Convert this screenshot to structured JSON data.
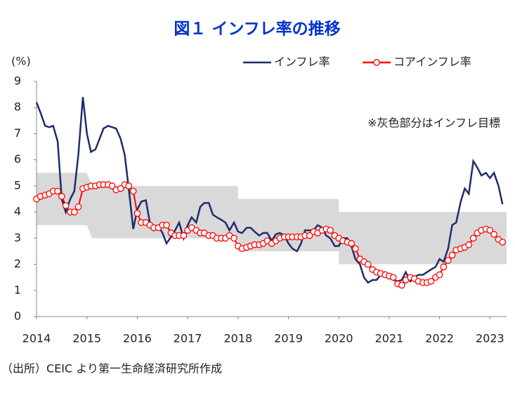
{
  "chart_data": {
    "type": "line",
    "title": "図１ インフレ率の推移",
    "ylabel": "(%)",
    "annotation": "※灰色部分はインフレ目標",
    "source": "（出所）CEIC より第一生命経済研究所作成",
    "xlim": [
      2014,
      2023.33
    ],
    "xticks": [
      2014,
      2015,
      2016,
      2017,
      2018,
      2019,
      2020,
      2021,
      2022,
      2023
    ],
    "ylim": [
      0,
      9
    ],
    "yticks": [
      0,
      1,
      2,
      3,
      4,
      5,
      6,
      7,
      8,
      9
    ],
    "legend": "top-right",
    "band": {
      "color": "#d9d9d9",
      "x": [
        2014,
        2015,
        2015.1,
        2018,
        2018,
        2020,
        2020,
        2023.33
      ],
      "low": [
        3.5,
        3.5,
        3,
        3,
        2.5,
        2.5,
        2,
        2
      ],
      "high": [
        5.5,
        5.5,
        5,
        5,
        4.5,
        4.5,
        4,
        4
      ]
    },
    "x": [
      2014.0,
      2014.08,
      2014.17,
      2014.25,
      2014.33,
      2014.42,
      2014.5,
      2014.58,
      2014.67,
      2014.75,
      2014.83,
      2014.92,
      2015.0,
      2015.08,
      2015.17,
      2015.25,
      2015.33,
      2015.42,
      2015.5,
      2015.58,
      2015.67,
      2015.75,
      2015.83,
      2015.92,
      2016.0,
      2016.08,
      2016.17,
      2016.25,
      2016.33,
      2016.42,
      2016.5,
      2016.58,
      2016.67,
      2016.75,
      2016.83,
      2016.92,
      2017.0,
      2017.08,
      2017.17,
      2017.25,
      2017.33,
      2017.42,
      2017.5,
      2017.58,
      2017.67,
      2017.75,
      2017.83,
      2017.92,
      2018.0,
      2018.08,
      2018.17,
      2018.25,
      2018.33,
      2018.42,
      2018.5,
      2018.58,
      2018.67,
      2018.75,
      2018.83,
      2018.92,
      2019.0,
      2019.08,
      2019.17,
      2019.25,
      2019.33,
      2019.42,
      2019.5,
      2019.58,
      2019.67,
      2019.75,
      2019.83,
      2019.92,
      2020.0,
      2020.08,
      2020.17,
      2020.25,
      2020.33,
      2020.42,
      2020.5,
      2020.58,
      2020.67,
      2020.75,
      2020.83,
      2020.92,
      2021.0,
      2021.08,
      2021.17,
      2021.25,
      2021.33,
      2021.42,
      2021.5,
      2021.58,
      2021.67,
      2021.75,
      2021.83,
      2021.92,
      2022.0,
      2022.08,
      2022.17,
      2022.25,
      2022.33,
      2022.42,
      2022.5,
      2022.58,
      2022.67,
      2022.75,
      2022.83,
      2022.92,
      2023.0,
      2023.08,
      2023.17,
      2023.25
    ],
    "series": [
      {
        "name": "インフレ率",
        "color": "#1f2d6b",
        "marker": false,
        "values": [
          8.2,
          7.8,
          7.3,
          7.25,
          7.3,
          6.7,
          4.5,
          4.0,
          4.5,
          4.8,
          6.2,
          8.4,
          7.0,
          6.3,
          6.4,
          6.8,
          7.2,
          7.3,
          7.25,
          7.2,
          6.8,
          6.2,
          4.9,
          3.35,
          4.1,
          4.4,
          4.45,
          3.6,
          3.3,
          3.45,
          3.2,
          2.8,
          3.05,
          3.3,
          3.6,
          3.0,
          3.5,
          3.8,
          3.6,
          4.2,
          4.35,
          4.35,
          3.9,
          3.8,
          3.7,
          3.6,
          3.3,
          3.6,
          3.25,
          3.2,
          3.4,
          3.4,
          3.25,
          3.1,
          3.2,
          3.2,
          2.9,
          3.15,
          3.2,
          3.1,
          2.8,
          2.6,
          2.5,
          2.8,
          3.3,
          3.3,
          3.3,
          3.5,
          3.4,
          3.1,
          3.0,
          2.7,
          2.7,
          3.0,
          3.0,
          2.7,
          2.2,
          2.0,
          1.5,
          1.3,
          1.4,
          1.4,
          1.6,
          1.7,
          1.55,
          1.4,
          1.35,
          1.4,
          1.7,
          1.35,
          1.5,
          1.6,
          1.6,
          1.7,
          1.8,
          1.9,
          2.2,
          2.1,
          2.6,
          3.5,
          3.6,
          4.4,
          4.9,
          4.7,
          5.95,
          5.7,
          5.4,
          5.5,
          5.3,
          5.5,
          5.0,
          4.3
        ]
      },
      {
        "name": "コアインフレ率",
        "color": "#ff0000",
        "marker": true,
        "values": [
          4.5,
          4.6,
          4.65,
          4.7,
          4.8,
          4.8,
          4.6,
          4.25,
          4.0,
          4.0,
          4.2,
          4.9,
          4.95,
          5.0,
          5.0,
          5.05,
          5.05,
          5.05,
          5.0,
          4.85,
          4.9,
          5.05,
          5.0,
          4.8,
          3.95,
          3.6,
          3.6,
          3.5,
          3.4,
          3.4,
          3.5,
          3.5,
          3.2,
          3.1,
          3.1,
          3.1,
          3.3,
          3.4,
          3.3,
          3.2,
          3.2,
          3.1,
          3.1,
          3.0,
          3.0,
          3.0,
          3.1,
          3.0,
          2.7,
          2.6,
          2.65,
          2.7,
          2.75,
          2.75,
          2.8,
          2.9,
          2.8,
          2.9,
          3.0,
          3.05,
          3.05,
          3.05,
          3.05,
          3.05,
          3.1,
          3.1,
          3.25,
          3.2,
          3.3,
          3.35,
          3.3,
          3.1,
          3.0,
          2.9,
          2.85,
          2.8,
          2.6,
          2.2,
          2.1,
          2.0,
          1.8,
          1.7,
          1.65,
          1.6,
          1.55,
          1.5,
          1.25,
          1.2,
          1.4,
          1.5,
          1.45,
          1.35,
          1.3,
          1.3,
          1.35,
          1.5,
          1.6,
          1.9,
          2.15,
          2.35,
          2.55,
          2.6,
          2.65,
          2.75,
          3.0,
          3.2,
          3.3,
          3.35,
          3.3,
          3.15,
          2.95,
          2.85
        ]
      }
    ]
  }
}
